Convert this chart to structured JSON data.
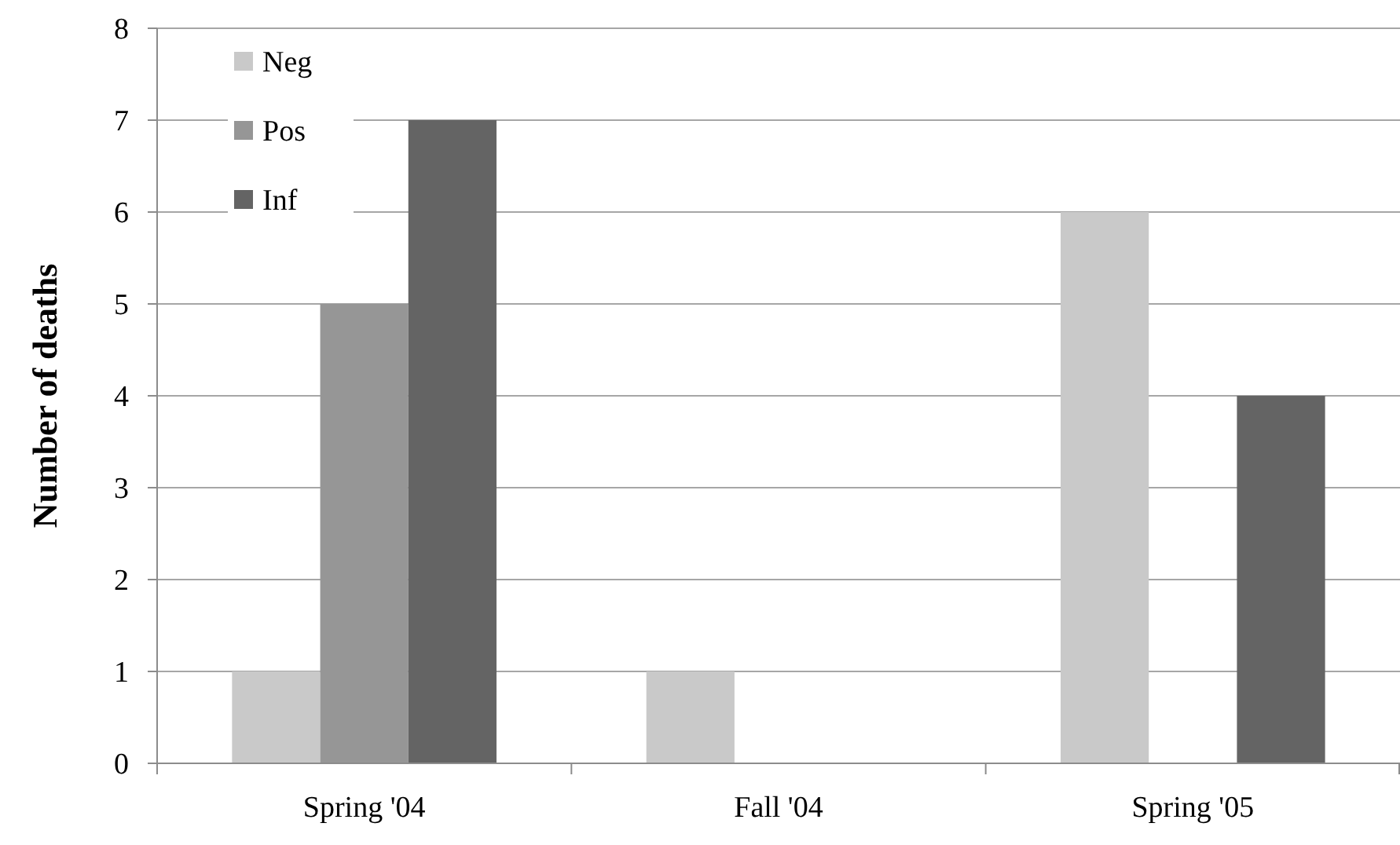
{
  "chart_data": {
    "type": "bar",
    "ylabel": "Number of deaths",
    "categories": [
      "Spring '04",
      "Fall '04",
      "Spring '05"
    ],
    "series": [
      {
        "name": "Neg",
        "color": "#c9c9c9",
        "values": [
          1,
          1,
          6
        ]
      },
      {
        "name": "Pos",
        "color": "#969696",
        "values": [
          5,
          0,
          0
        ]
      },
      {
        "name": "Inf",
        "color": "#646464",
        "values": [
          7,
          0,
          4
        ]
      }
    ],
    "ylim": [
      0,
      8
    ],
    "yticks": [
      0,
      1,
      2,
      3,
      4,
      5,
      6,
      7,
      8
    ],
    "grid": "y",
    "legend": "top left"
  }
}
